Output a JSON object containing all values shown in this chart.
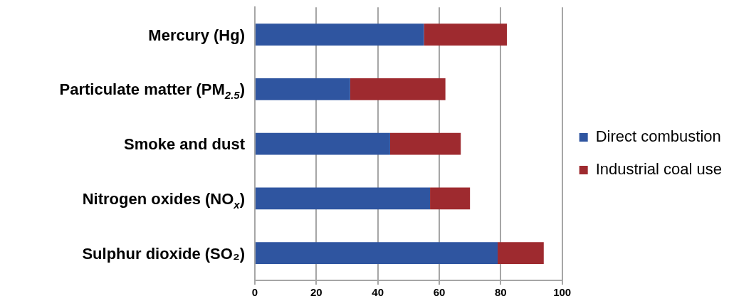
{
  "chart_data": {
    "type": "bar",
    "orientation": "horizontal",
    "stacked": true,
    "categories": [
      "Mercury (Hg)",
      "Particulate matter (PM$_{2.5}$)",
      "Smoke and dust",
      "Nitrogen oxides (NO$_{x}$)",
      "Sulphur dioxide (SO₂)"
    ],
    "series": [
      {
        "name": "Direct combustion",
        "color": "#2f55a0",
        "values": [
          55,
          31,
          44,
          57,
          79
        ]
      },
      {
        "name": "Industrial coal use",
        "color": "#9e2a2f",
        "values": [
          27,
          31,
          23,
          13,
          15
        ]
      }
    ],
    "xlim": [
      0,
      100
    ],
    "xticks": [
      0,
      20,
      40,
      60,
      80,
      100
    ],
    "grid": "x",
    "legend": "right"
  }
}
